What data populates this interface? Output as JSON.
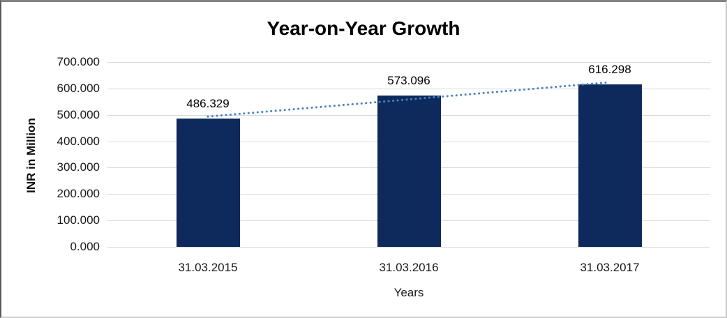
{
  "title": "Year-on-Year Growth",
  "y_axis": {
    "title": "INR in Million",
    "tick_labels": [
      "700.000",
      "600.000",
      "500.000",
      "400.000",
      "300.000",
      "200.000",
      "100.000",
      "0.000"
    ]
  },
  "x_axis": {
    "title": "Years",
    "tick_labels": [
      "31.03.2015",
      "31.03.2016",
      "31.03.2017"
    ]
  },
  "chart_data": {
    "type": "bar",
    "title": "Year-on-Year Growth",
    "categories": [
      "31.03.2015",
      "31.03.2016",
      "31.03.2017"
    ],
    "values": [
      486.329,
      573.096,
      616.298
    ],
    "data_labels": [
      "486.329",
      "573.096",
      "616.298"
    ],
    "xlabel": "Years",
    "ylabel": "INR in Million",
    "ylim": [
      0,
      700
    ],
    "ytick_step": 100,
    "grid": true,
    "legend": false,
    "trendline": {
      "type": "linear",
      "style": "dotted",
      "trend_values_at_first_last_category": [
        493.6,
        623.5
      ]
    },
    "colors": {
      "bar": "#0e2a5c",
      "trendline": "#4a82c4",
      "gridline": "#d9d9d9",
      "text": "#000000"
    }
  }
}
